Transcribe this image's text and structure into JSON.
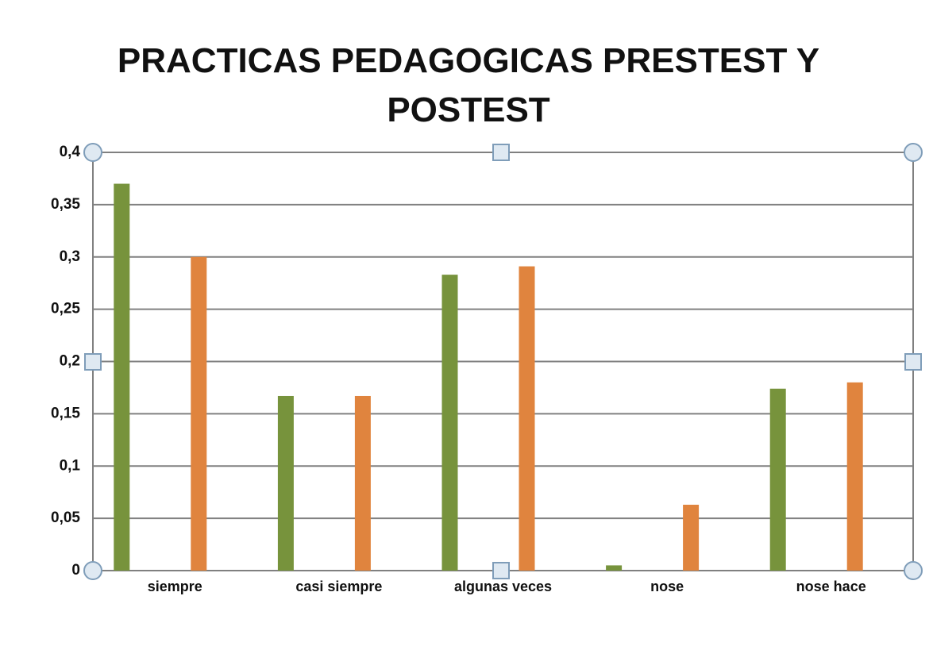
{
  "chart_data": {
    "type": "bar",
    "title": "PRACTICAS PEDAGOGICAS PRESTEST Y POSTEST",
    "categories": [
      "siempre",
      "casi siempre",
      "algunas veces",
      "nose",
      "nose hace"
    ],
    "series": [
      {
        "color": "#77933c",
        "values": [
          0.37,
          0.167,
          0.283,
          0.005,
          0.174
        ]
      },
      {
        "color": "#e0843e",
        "values": [
          0.3,
          0.167,
          0.291,
          0.063,
          0.18
        ]
      }
    ],
    "ylim": [
      0,
      0.4
    ],
    "yticks": [
      0,
      {
        "value": 0.05,
        "label": "0,05"
      },
      {
        "value": 0.1,
        "label": "0,1"
      },
      {
        "value": 0.15,
        "label": "0,15"
      },
      {
        "value": 0.2,
        "label": "0,2"
      },
      {
        "value": 0.25,
        "label": "0,25"
      },
      {
        "value": 0.3,
        "label": "0,3"
      },
      {
        "value": 0.35,
        "label": "0,35"
      },
      {
        "value": 0.4,
        "label": "0,4"
      }
    ],
    "grid": true
  }
}
